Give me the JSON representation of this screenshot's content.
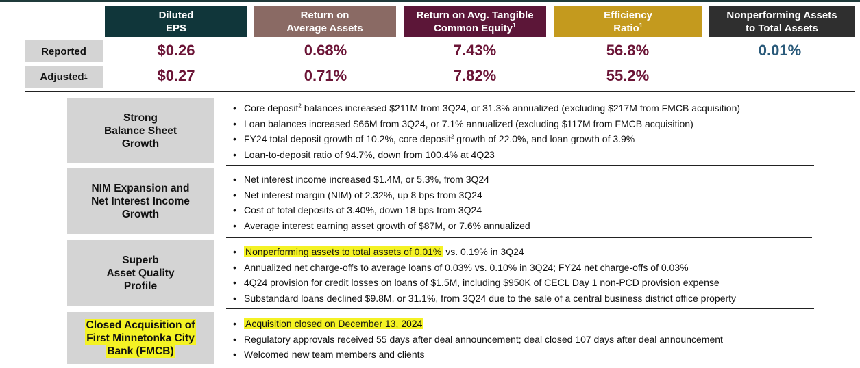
{
  "metrics": [
    {
      "line1": "Diluted",
      "line2": "EPS",
      "sup": "",
      "color": "#10363a"
    },
    {
      "line1": "Return on",
      "line2": "Average Assets",
      "sup": "",
      "color": "#8a6a64"
    },
    {
      "line1": "Return on Avg. Tangible",
      "line2": "Common Equity",
      "sup": "1",
      "color": "#5c1638"
    },
    {
      "line1": "Efficiency",
      "line2": "Ratio",
      "sup": "1",
      "color": "#c49a1e"
    },
    {
      "line1": "Nonperforming Assets",
      "line2": "to Total Assets",
      "sup": "",
      "color": "#2f2f2f"
    }
  ],
  "rows": {
    "reported": {
      "label": "Reported",
      "sup": "",
      "values": [
        "$0.26",
        "0.68%",
        "7.43%",
        "56.8%",
        "0.01%"
      ]
    },
    "adjusted": {
      "label": "Adjusted",
      "sup": "1",
      "values": [
        "$0.27",
        "0.71%",
        "7.82%",
        "55.2%",
        ""
      ]
    }
  },
  "value_colors": [
    "#6b1436",
    "#6b1436",
    "#6b1436",
    "#6b1436",
    "#2a5a7a"
  ],
  "sections": [
    {
      "title": [
        "Strong",
        "Balance Sheet",
        "Growth"
      ],
      "bullets": [
        {
          "pre": "Core deposit",
          "sup": "2",
          "post": " balances increased $211M from 3Q24, or 31.3% annualized (excluding $217M from FMCB acquisition)"
        },
        {
          "pre": "Loan balances increased $66M from 3Q24, or 7.1% annualized (excluding $117M from FMCB acquisition)",
          "sup": "",
          "post": ""
        },
        {
          "pre": "FY24 total deposit growth of 10.2%, core deposit",
          "sup": "2",
          "post": " growth of 22.0%, and loan growth of 3.9%"
        },
        {
          "pre": "Loan-to-deposit ratio of 94.7%, down from 100.4% at 4Q23",
          "sup": "",
          "post": ""
        }
      ]
    },
    {
      "title": [
        "NIM Expansion and",
        "Net Interest Income",
        "Growth"
      ],
      "bullets": [
        {
          "pre": "Net interest income increased $1.4M, or 5.3%, from 3Q24",
          "sup": "",
          "post": ""
        },
        {
          "pre": "Net interest margin (NIM) of 2.32%, up 8 bps from 3Q24",
          "sup": "",
          "post": ""
        },
        {
          "pre": "Cost of total deposits of 3.40%, down 18 bps from 3Q24",
          "sup": "",
          "post": ""
        },
        {
          "pre": "Average interest earning asset growth of $87M, or 7.6% annualized",
          "sup": "",
          "post": ""
        }
      ]
    },
    {
      "title": [
        "Superb",
        "Asset Quality",
        "Profile"
      ],
      "bullets": [
        {
          "hl": "Nonperforming assets to total assets of 0.01%",
          "pre": "",
          "sup": "",
          "post": " vs. 0.19% in 3Q24"
        },
        {
          "pre": "Annualized net charge-offs to average loans of 0.03% vs. 0.10% in 3Q24; FY24 net charge-offs of 0.03%",
          "sup": "",
          "post": ""
        },
        {
          "pre": "4Q24 provision for credit losses on loans of $1.5M, including $950K of CECL Day 1 non-PCD provision expense",
          "sup": "",
          "post": ""
        },
        {
          "pre": "Substandard loans declined $9.8M, or 31.1%, from 3Q24 due to the sale of a central business district office property",
          "sup": "",
          "post": ""
        }
      ]
    },
    {
      "title": [
        "Closed Acquisition of",
        "First Minnetonka City",
        "Bank (FMCB)"
      ],
      "title_highlight": true,
      "bullets": [
        {
          "hl": "Acquisition closed on December 13, 2024",
          "pre": "",
          "sup": "",
          "post": ""
        },
        {
          "pre": "Regulatory approvals received 55 days after deal announcement; deal closed 107 days after deal announcement",
          "sup": "",
          "post": ""
        },
        {
          "pre": "Welcomed new team members and clients",
          "sup": "",
          "post": ""
        }
      ]
    }
  ],
  "bullet_glyph": "•"
}
